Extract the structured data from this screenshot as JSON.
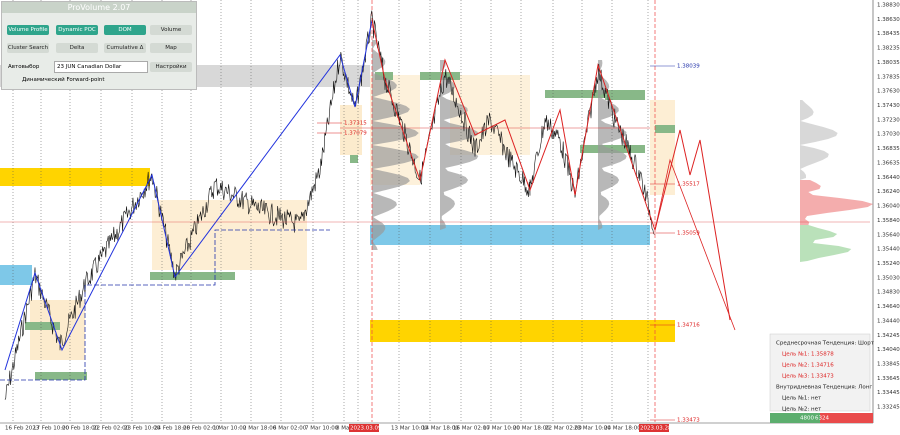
{
  "panel": {
    "title": "ProVolume 2.07",
    "buttons": [
      "Volume Profile",
      "Dynamic POC",
      "DOM",
      "Volume",
      "Cluster Search",
      "Delta",
      "Cumulative Δ",
      "Map"
    ],
    "auto_select": "Автовыбор",
    "instrument": "23 JUN Canadian Dollar",
    "settings": "Настройки",
    "forward_point": "Динамический Forward-point"
  },
  "price_axis": {
    "labels": [
      "1.38830",
      "1.38630",
      "1.38435",
      "1.38235",
      "1.38035",
      "1.37835",
      "1.37630",
      "1.37430",
      "1.37230",
      "1.37030",
      "1.36835",
      "1.36635",
      "1.36440",
      "1.36240",
      "1.36040",
      "1.35840",
      "1.35640",
      "1.35440",
      "1.35240",
      "1.35030",
      "1.34830",
      "1.34640",
      "1.34440",
      "1.34245",
      "1.34040",
      "1.33845",
      "1.33645",
      "1.33445",
      "1.33245"
    ]
  },
  "time_axis": {
    "labels": [
      "16 Feb 2023",
      "17 Feb 10:00",
      "20 Feb 18:00",
      "22 Feb 02:00",
      "23 Feb 10:00",
      "24 Feb 18:00",
      "28 Feb 02:00",
      "1 Mar 10:00",
      "2 Mar 18:00",
      "6 Mar 02:00",
      "7 Mar 10:00",
      "8 Mar 18:00",
      "2023.03.09 11:00",
      "13 Mar 10:00",
      "14 Mar 18:00",
      "16 Mar 02:00",
      "17 Mar 10:00",
      "20 Mar 18:00",
      "22 Mar 02:00",
      "23 Mar 10:00",
      "24 Mar 18:00",
      "2023.03.28 04:00"
    ]
  },
  "levels": [
    "1.38039",
    "1.35517",
    "1.35059",
    "1.34716",
    "1.33473",
    "1.37315",
    "1.37079"
  ],
  "trend_box": {
    "lines": [
      "Среднесрочная Тенденция: Шорт",
      "Цель №1: 1.35878",
      "Цель №2: 1.34716",
      "Цель №3: 1.33473",
      "Внутридневная Тенденция: Лонг",
      "Цель №1: нет",
      "Цель №2: нет"
    ]
  },
  "footer": [
    "4800",
    "6324"
  ]
}
